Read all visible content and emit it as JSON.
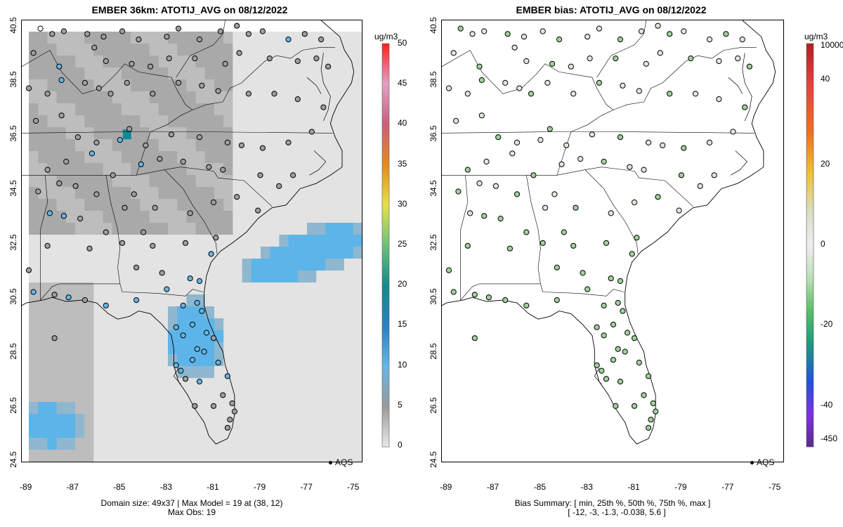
{
  "left": {
    "title": "EMBER 36km: ATOTIJ_AVG on 08/12/2022",
    "caption_line1": "Domain size: 49x37 | Max Model = 19 at (38, 12)",
    "caption_line2": "Max Obs: 19",
    "legend_label": "AQS",
    "colorbar_units": "ug/m3",
    "colorbar_ticks": [
      "0",
      "5",
      "10",
      "15",
      "20",
      "25",
      "30",
      "35",
      "40",
      "45",
      "50"
    ],
    "colorbar_range": [
      0,
      50
    ]
  },
  "right": {
    "title": "EMBER bias: ATOTIJ_AVG on 08/12/2022",
    "caption_line1": "Bias Summary: [ min, 25th %, 50th %, 75th %, max ]",
    "caption_line2": "[ -12,   -3,   -1.3,   -0.038,   5.6 ]",
    "legend_label": "AQS",
    "colorbar_units": "ug/m3",
    "colorbar_top_label": "10000",
    "colorbar_ticks": [
      "40",
      "20",
      "0",
      "-20",
      "-40",
      "-450"
    ],
    "colorbar_bottom_label": "-450"
  },
  "axes": {
    "x_ticks": [
      "-89",
      "-87",
      "-85",
      "-83",
      "-81",
      "-79",
      "-77",
      "-75"
    ],
    "y_ticks": [
      "40.5",
      "38.5",
      "36.5",
      "34.5",
      "32.5",
      "30.5",
      "28.5",
      "26.5",
      "24.5"
    ],
    "lon_range": [
      -89.2,
      -74.6
    ],
    "lat_range": [
      24.4,
      40.7
    ]
  },
  "colors": {
    "model_bg": "#e3e3e3",
    "model_gray": "#a9a9a9",
    "model_blue": "#5db4e8",
    "obs_gray": "#9e9e9e",
    "obs_blue": "#63b5e6",
    "bias_green": "#9fd19a",
    "bias_pale": "#dfe8dc"
  }
}
